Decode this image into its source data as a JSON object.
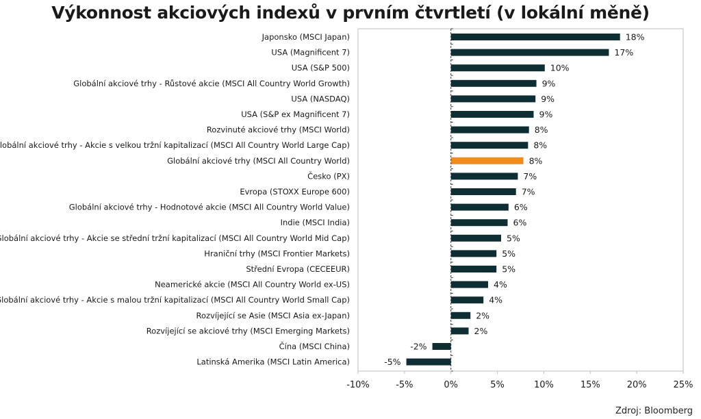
{
  "chart_data": {
    "type": "bar",
    "orientation": "horizontal",
    "title": "Výkonnost akciových indexů v prvním čtvrtletí (v lokální měně)",
    "source": "Zdroj: Bloomberg",
    "xlim": [
      -10,
      25
    ],
    "xticks": [
      -10,
      -5,
      0,
      5,
      10,
      15,
      20,
      25
    ],
    "xtick_labels": [
      "-10%",
      "-5%",
      "0%",
      "5%",
      "10%",
      "15%",
      "20%",
      "25%"
    ],
    "colors": {
      "default": "#0d2f33",
      "highlight": "#f28b1a"
    },
    "highlight_index": 8,
    "categories": [
      "Japonsko (MSCI Japan)",
      "USA (Magnificent 7)",
      "USA (S&P 500)",
      "Globální akciové trhy - Růstové akcie (MSCI All Country World Growth)",
      "USA (NASDAQ)",
      "USA (S&P ex Magnificent 7)",
      "Rozvinuté akciové trhy (MSCI World)",
      "Globální akciové trhy - Akcie s velkou tržní kapitalizací (MSCI All Country World Large Cap)",
      "Globální akciové trhy (MSCI All Country World)",
      "Česko (PX)",
      "Evropa (STOXX Europe 600)",
      "Globální akciové trhy - Hodnotové akcie (MSCI All Country World Value)",
      "Indie (MSCI India)",
      "Globální akciové trhy - Akcie se střední tržní kapitalizací (MSCI All Country World Mid Cap)",
      "Hraniční trhy (MSCI Frontier Markets)",
      "Střední Evropa (CECEEUR)",
      "Neamerické akcie (MSCI All Country World ex-US)",
      "Globální akciové trhy - Akcie s malou tržní kapitalizací (MSCI All Country World Small Cap)",
      "Rozvíjející se Asie (MSCI Asia ex-Japan)",
      "Rozvíjející se akciové trhy (MSCI Emerging Markets)",
      "Čína (MSCI China)",
      "Latinská Amerika (MSCI Latin America)"
    ],
    "values": [
      18.2,
      17.0,
      10.1,
      9.2,
      9.1,
      8.9,
      8.4,
      8.3,
      7.8,
      7.2,
      7.0,
      6.2,
      6.1,
      5.4,
      4.9,
      4.9,
      4.0,
      3.5,
      2.1,
      1.9,
      -2.0,
      -4.8
    ],
    "value_labels": [
      "18%",
      "17%",
      "10%",
      "9%",
      "9%",
      "9%",
      "8%",
      "8%",
      "8%",
      "7%",
      "7%",
      "6%",
      "6%",
      "5%",
      "5%",
      "5%",
      "4%",
      "4%",
      "2%",
      "2%",
      "-2%",
      "-5%"
    ]
  }
}
